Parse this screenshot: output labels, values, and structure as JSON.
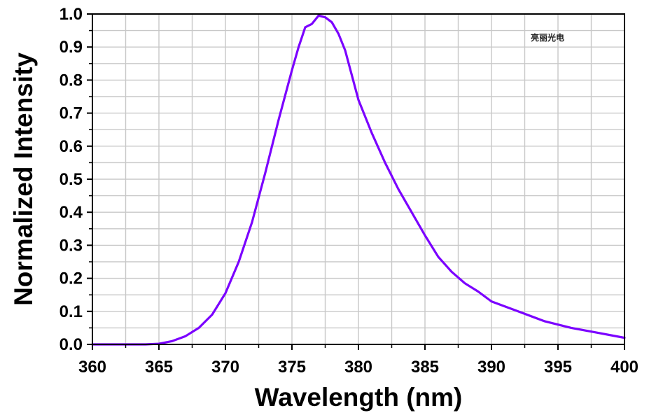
{
  "chart_data": {
    "type": "line",
    "title": "",
    "xlabel": "Wavelength (nm)",
    "ylabel": "Normalized Intensity",
    "xlim": [
      360,
      400
    ],
    "ylim": [
      0,
      1.0
    ],
    "x_ticks": [
      "360",
      "365",
      "370",
      "375",
      "380",
      "385",
      "390",
      "395",
      "400"
    ],
    "y_ticks": [
      "0.0",
      "0.1",
      "0.2",
      "0.3",
      "0.4",
      "0.5",
      "0.6",
      "0.7",
      "0.8",
      "0.9",
      "1.0"
    ],
    "grid": true,
    "line_color": "#7b00ff",
    "annotation": "亮丽光电",
    "series": [
      {
        "x": [
          360,
          362,
          364,
          365,
          366,
          367,
          368,
          369,
          370,
          371,
          372,
          373,
          374,
          375,
          375.5,
          376,
          376.5,
          377,
          377.5,
          378,
          378.5,
          379,
          380,
          381,
          382,
          383,
          384,
          385,
          386,
          387,
          388,
          389,
          390,
          392,
          394,
          396,
          398,
          400
        ],
        "y": [
          0.0,
          0.0,
          0.0,
          0.002,
          0.01,
          0.025,
          0.05,
          0.09,
          0.155,
          0.25,
          0.37,
          0.52,
          0.68,
          0.83,
          0.9,
          0.96,
          0.97,
          0.995,
          0.99,
          0.975,
          0.94,
          0.89,
          0.74,
          0.64,
          0.55,
          0.47,
          0.4,
          0.33,
          0.265,
          0.22,
          0.185,
          0.16,
          0.13,
          0.1,
          0.07,
          0.05,
          0.035,
          0.02
        ]
      }
    ]
  }
}
